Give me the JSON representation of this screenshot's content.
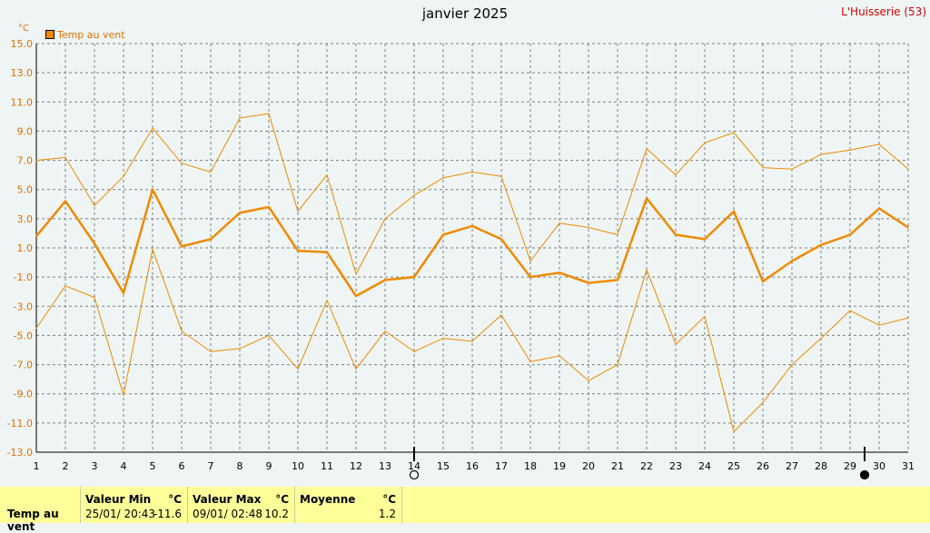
{
  "header": {
    "title": "janvier 2025",
    "station": "L'Huisserie (53)",
    "unit": "°C",
    "legend_label": "Temp au vent"
  },
  "colors": {
    "series": "#f08a00",
    "grid": "#808080",
    "station": "#d00000",
    "footer_bg": "#ffff99"
  },
  "chart_data": {
    "type": "line",
    "title": "janvier 2025",
    "ylabel": "°C",
    "ylim": [
      -13.0,
      15.0
    ],
    "ytick_step": 2.0,
    "yticks": [
      "15.0",
      "13.0",
      "11.0",
      "9.0",
      "7.0",
      "5.0",
      "3.0",
      "1.0",
      "-1.0",
      "-3.0",
      "-5.0",
      "-7.0",
      "-9.0",
      "-11.0",
      "-13.0"
    ],
    "x": [
      1,
      2,
      3,
      4,
      5,
      6,
      7,
      8,
      9,
      10,
      11,
      12,
      13,
      14,
      15,
      16,
      17,
      18,
      19,
      20,
      21,
      22,
      23,
      24,
      25,
      26,
      27,
      28,
      29,
      30,
      31
    ],
    "grid": true,
    "legend_position": "top-left",
    "series": [
      {
        "name": "Temp au vent",
        "role": "mean",
        "values": [
          1.8,
          4.2,
          1.3,
          -2.1,
          5.0,
          1.1,
          1.6,
          3.4,
          3.8,
          0.8,
          0.7,
          -2.3,
          -1.2,
          -1.0,
          1.9,
          2.5,
          1.6,
          -1.0,
          -0.7,
          -1.4,
          -1.2,
          4.4,
          1.9,
          1.6,
          3.5,
          -1.3,
          0.1,
          1.2,
          1.9,
          3.7,
          2.4
        ]
      },
      {
        "role": "max",
        "values": [
          7.0,
          7.2,
          3.9,
          5.9,
          9.2,
          6.8,
          6.2,
          9.9,
          10.2,
          3.5,
          6.0,
          -0.8,
          3.0,
          4.6,
          5.8,
          6.2,
          5.9,
          0.1,
          2.7,
          2.4,
          1.9,
          7.8,
          6.0,
          8.2,
          8.9,
          6.5,
          6.4,
          7.4,
          7.7,
          8.1,
          6.4
        ]
      },
      {
        "role": "min",
        "values": [
          -4.5,
          -1.6,
          -2.4,
          -9.1,
          0.9,
          -4.7,
          -6.1,
          -5.9,
          -5.0,
          -7.3,
          -2.6,
          -7.3,
          -4.7,
          -6.1,
          -5.2,
          -5.4,
          -3.6,
          -6.8,
          -6.4,
          -8.1,
          -7.0,
          -0.5,
          -5.6,
          -3.7,
          -11.6,
          -9.6,
          -7.0,
          -5.2,
          -3.3,
          -4.3,
          -3.8
        ]
      }
    ],
    "moon_markers": [
      {
        "x": 14,
        "phase": "full"
      },
      {
        "x": 29.5,
        "phase": "new"
      }
    ]
  },
  "footer": {
    "row_label": "Temp au vent",
    "min_header": "Valeur Min",
    "min_unit": "°C",
    "min_date": "25/01/  20:43",
    "min_value": "-11.6",
    "max_header": "Valeur Max",
    "max_unit": "°C",
    "max_date": "09/01/  02:48",
    "max_value": "10.2",
    "avg_header": "Moyenne",
    "avg_unit": "°C",
    "avg_value": "1.2"
  }
}
